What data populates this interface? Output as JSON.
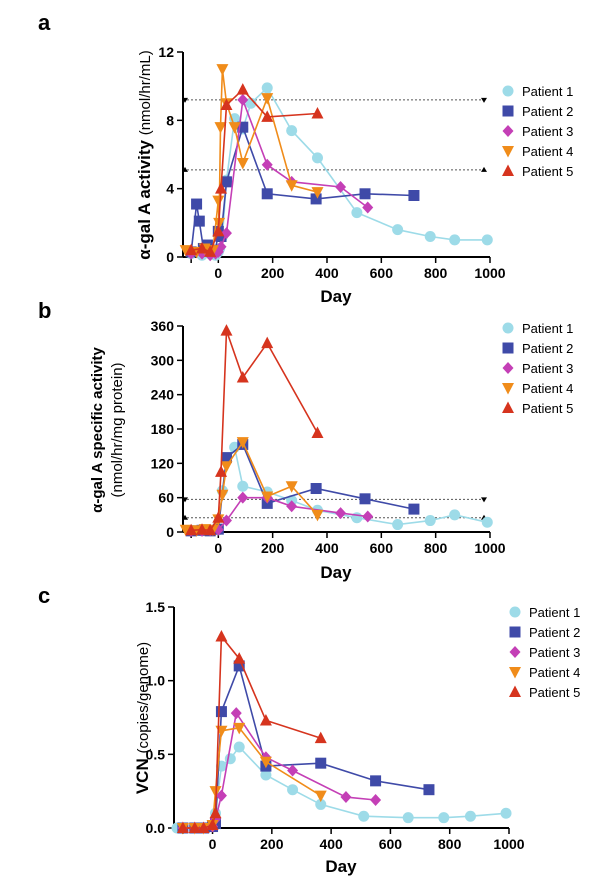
{
  "chart_data": [
    {
      "panel": "a",
      "type": "line",
      "xlabel": "Day",
      "ylabel_prefix": "α-gal A activity",
      "ylabel_unit": "(nmol/hr/mL)",
      "xlim": [
        -130,
        1000
      ],
      "ylim": [
        0,
        12
      ],
      "xticks": [
        0,
        200,
        400,
        600,
        800,
        1000
      ],
      "yticks": [
        0,
        4,
        8,
        12
      ],
      "reference_lines": [
        9.2,
        5.1
      ],
      "series": [
        {
          "name": "Patient 1",
          "color": "#9ddbe8",
          "marker": "circle",
          "x": [
            -100,
            -60,
            -30,
            -10,
            0,
            5,
            15,
            30,
            60,
            90,
            120,
            180,
            270,
            365,
            510,
            660,
            780,
            870,
            990
          ],
          "y": [
            0.2,
            0.1,
            0.2,
            0.1,
            0.3,
            0.5,
            1.2,
            4.5,
            8.1,
            7.5,
            9.0,
            9.9,
            7.4,
            5.8,
            2.6,
            1.6,
            1.2,
            1.0,
            1.0
          ]
        },
        {
          "name": "Patient 2",
          "color": "#3f4aa8",
          "marker": "square",
          "x": [
            -100,
            -80,
            -70,
            -55,
            -40,
            -10,
            0,
            10,
            30,
            90,
            180,
            360,
            540,
            720
          ],
          "y": [
            0.3,
            3.1,
            2.1,
            0.5,
            0.7,
            0.4,
            1.5,
            1.2,
            4.4,
            7.6,
            3.7,
            3.4,
            3.7,
            3.6
          ]
        },
        {
          "name": "Patient 3",
          "color": "#c43fb6",
          "marker": "diamond",
          "x": [
            -100,
            -60,
            -30,
            -10,
            0,
            10,
            30,
            90,
            180,
            270,
            450,
            550
          ],
          "y": [
            0.2,
            0.2,
            0.1,
            0.2,
            0.3,
            0.6,
            1.4,
            9.2,
            5.4,
            4.4,
            4.1,
            2.9
          ]
        },
        {
          "name": "Patient 4",
          "color": "#f08c1a",
          "marker": "triangle-down",
          "x": [
            -120,
            -80,
            -50,
            -20,
            0,
            3,
            8,
            15,
            30,
            60,
            90,
            180,
            270,
            365
          ],
          "y": [
            0.4,
            0.3,
            0.5,
            0.4,
            3.3,
            2.0,
            7.6,
            11.0,
            9.0,
            7.6,
            5.5,
            9.3,
            4.2,
            3.8
          ]
        },
        {
          "name": "Patient 5",
          "color": "#d6341e",
          "marker": "triangle",
          "x": [
            -100,
            -60,
            -30,
            0,
            10,
            30,
            90,
            180,
            365
          ],
          "y": [
            0.4,
            0.5,
            0.3,
            1.5,
            4.0,
            8.9,
            9.8,
            8.2,
            8.4
          ]
        }
      ]
    },
    {
      "panel": "b",
      "type": "line",
      "xlabel": "Day",
      "ylabel_prefix": "α-gal A specific activity",
      "ylabel_unit": "(nmol/hr/mg protein)",
      "xlim": [
        -130,
        1000
      ],
      "ylim": [
        0,
        360
      ],
      "xticks": [
        0,
        200,
        400,
        600,
        800,
        1000
      ],
      "yticks": [
        0,
        60,
        120,
        180,
        240,
        300,
        360
      ],
      "reference_lines": [
        57,
        25
      ],
      "series": [
        {
          "name": "Patient 1",
          "color": "#9ddbe8",
          "marker": "circle",
          "x": [
            -100,
            -60,
            -30,
            0,
            15,
            30,
            60,
            90,
            180,
            270,
            365,
            510,
            660,
            780,
            870,
            990
          ],
          "y": [
            3,
            2,
            3,
            4,
            72,
            128,
            148,
            80,
            70,
            55,
            38,
            25,
            13,
            20,
            30,
            17
          ]
        },
        {
          "name": "Patient 2",
          "color": "#3f4aa8",
          "marker": "square",
          "x": [
            -100,
            -60,
            -30,
            0,
            30,
            90,
            180,
            360,
            540,
            720
          ],
          "y": [
            2,
            3,
            2,
            5,
            130,
            153,
            50,
            76,
            58,
            40
          ]
        },
        {
          "name": "Patient 3",
          "color": "#c43fb6",
          "marker": "diamond",
          "x": [
            -100,
            -60,
            -30,
            0,
            30,
            90,
            180,
            270,
            450,
            550
          ],
          "y": [
            2,
            2,
            3,
            4,
            20,
            60,
            60,
            45,
            33,
            27
          ]
        },
        {
          "name": "Patient 4",
          "color": "#f08c1a",
          "marker": "triangle-down",
          "x": [
            -120,
            -80,
            -50,
            -20,
            0,
            15,
            30,
            90,
            180,
            270,
            365
          ],
          "y": [
            4,
            3,
            5,
            4,
            22,
            65,
            115,
            157,
            62,
            80,
            30
          ]
        },
        {
          "name": "Patient 5",
          "color": "#d6341e",
          "marker": "triangle",
          "x": [
            -100,
            -60,
            -30,
            0,
            10,
            30,
            90,
            180,
            365
          ],
          "y": [
            3,
            4,
            3,
            25,
            105,
            352,
            270,
            330,
            173
          ]
        }
      ]
    },
    {
      "panel": "c",
      "type": "line",
      "xlabel": "Day",
      "ylabel_bold": "VCN",
      "ylabel_unit": "(copies/genome)",
      "xlim": [
        -130,
        1000
      ],
      "ylim": [
        0,
        1.5
      ],
      "xticks": [
        0,
        200,
        400,
        600,
        800,
        1000
      ],
      "yticks": [
        0.0,
        0.5,
        1.0,
        1.5
      ],
      "ytick_labels": [
        "0.0",
        "0.5",
        "1.0",
        "1.5"
      ],
      "series": [
        {
          "name": "Patient 1",
          "color": "#9ddbe8",
          "marker": "circle",
          "x": [
            -120,
            -60,
            -40,
            -20,
            0,
            10,
            30,
            60,
            90,
            180,
            270,
            365,
            510,
            660,
            780,
            870,
            990
          ],
          "y": [
            0,
            0,
            0,
            0,
            0.02,
            0.1,
            0.42,
            0.47,
            0.55,
            0.36,
            0.26,
            0.16,
            0.08,
            0.07,
            0.07,
            0.08,
            0.1
          ]
        },
        {
          "name": "Patient 2",
          "color": "#3f4aa8",
          "marker": "square",
          "x": [
            -100,
            -60,
            -30,
            0,
            10,
            30,
            90,
            180,
            365,
            550,
            730
          ],
          "y": [
            0,
            0,
            0,
            0.01,
            0.03,
            0.79,
            1.1,
            0.42,
            0.44,
            0.32,
            0.26
          ]
        },
        {
          "name": "Patient 3",
          "color": "#c43fb6",
          "marker": "diamond",
          "x": [
            -100,
            -60,
            -30,
            0,
            10,
            30,
            80,
            180,
            270,
            450,
            550
          ],
          "y": [
            0,
            0,
            0,
            0.01,
            0.06,
            0.22,
            0.78,
            0.48,
            0.39,
            0.21,
            0.19
          ]
        },
        {
          "name": "Patient 4",
          "color": "#f08c1a",
          "marker": "triangle-down",
          "x": [
            -100,
            -60,
            -30,
            0,
            10,
            30,
            90,
            180,
            365
          ],
          "y": [
            0,
            0,
            0,
            0.02,
            0.25,
            0.66,
            0.68,
            0.45,
            0.22
          ]
        },
        {
          "name": "Patient 5",
          "color": "#d6341e",
          "marker": "triangle",
          "x": [
            -100,
            -60,
            -30,
            0,
            10,
            30,
            90,
            180,
            365
          ],
          "y": [
            0,
            0,
            0,
            0.02,
            0.1,
            1.3,
            1.15,
            0.73,
            0.61
          ]
        }
      ]
    }
  ]
}
